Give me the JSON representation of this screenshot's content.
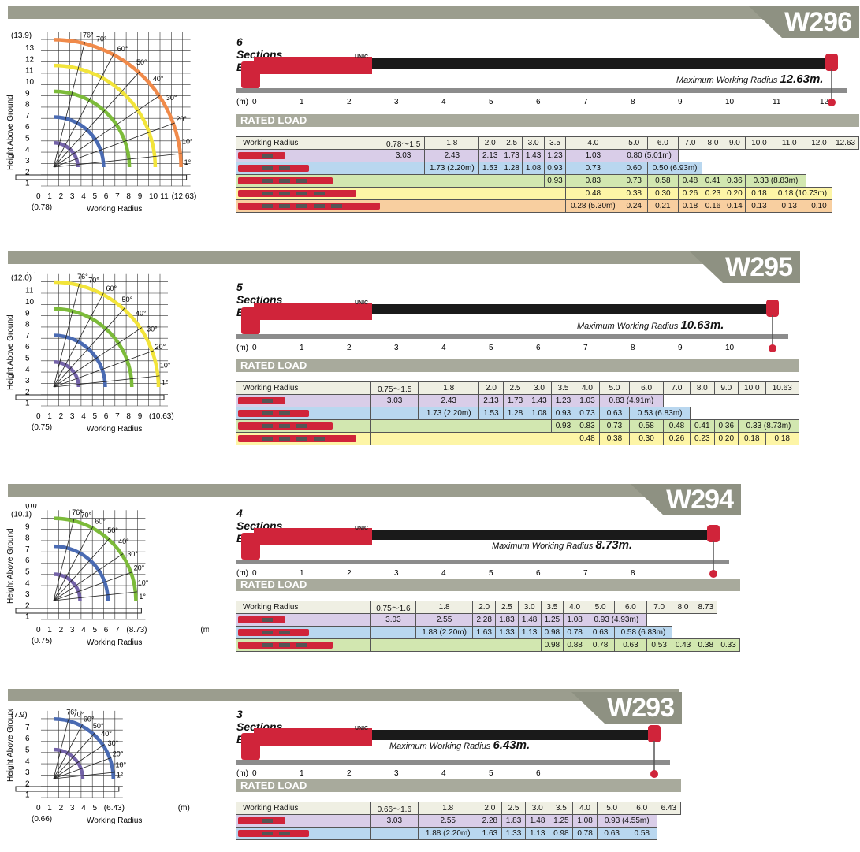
{
  "colors": {
    "purple": "#d9cde8",
    "blue": "#b9d7ef",
    "green": "#d2e7b0",
    "yellow": "#fdf5a6",
    "orange": "#f8cfa0",
    "header": "#efefe3",
    "boom_red": "#d0243a",
    "arc_purple": "#7463a8",
    "arc_blue": "#4a6bb3",
    "arc_green": "#7cbb3a",
    "arc_yellow": "#f2e43a",
    "arc_orange": "#f08a4a"
  },
  "common": {
    "boom_label": "UNIC",
    "ylabel": "Height Above Ground",
    "xlabel": "Working Radius",
    "unit_m": "(m)",
    "rated_load": "RATED LOAD",
    "max_radius_prefix": "Maximum Working Radius",
    "angles": [
      "76°",
      "70°",
      "60°",
      "50°",
      "40°",
      "30°",
      "20°",
      "10°",
      "1°"
    ],
    "row_label": "Working Radius"
  },
  "sections": [
    {
      "id": "W296",
      "model": "W296",
      "boom_title": "6 Sections Boom",
      "max_radius": "12.63m.",
      "chart_ymax_label": "(13.9)",
      "chart_y_ticks": [
        "13",
        "12",
        "11",
        "10",
        "9",
        "8",
        "7",
        "6",
        "5",
        "4",
        "3",
        "2",
        "1"
      ],
      "chart_x_ticks": [
        "0",
        "1",
        "2",
        "3",
        "4",
        "5",
        "6",
        "7",
        "8",
        "9",
        "10",
        "11",
        "(12.63)"
      ],
      "chart_x_sub": "(0.78)",
      "axis_ticks": [
        "0",
        "1",
        "2",
        "3",
        "4",
        "5",
        "6",
        "7",
        "8",
        "9",
        "10",
        "11",
        "12"
      ],
      "header": [
        "0.78～1.5",
        "1.8",
        "2.0",
        "2.5",
        "3.0",
        "3.5",
        "4.0",
        "5.0",
        "6.0",
        "7.0",
        "8.0",
        "9.0",
        "10.0",
        "11.0",
        "12.0",
        "12.63"
      ],
      "rows": [
        {
          "color": "purple",
          "cells": [
            "3.03",
            "2.43",
            "2.13",
            "1.73",
            "1.43",
            "1.23",
            "1.03",
            "0.80 (5.01m)"
          ]
        },
        {
          "color": "blue",
          "cells": [
            "",
            "1.73 (2.20m)",
            "1.53",
            "1.28",
            "1.08",
            "0.93",
            "0.73",
            "0.60",
            "0.50 (6.93m)"
          ]
        },
        {
          "color": "green",
          "cells": [
            "",
            "0.93",
            "0.83",
            "0.73",
            "0.58",
            "0.48",
            "0.41",
            "0.36",
            "0.33 (8.83m)"
          ]
        },
        {
          "color": "yellow",
          "cells": [
            "",
            "0.48",
            "0.38",
            "0.30",
            "0.26",
            "0.23",
            "0.20",
            "0.18",
            "0.18 (10.73m)"
          ]
        },
        {
          "color": "orange",
          "cells": [
            "",
            "0.28 (5.30m)",
            "0.24",
            "0.21",
            "0.18",
            "0.16",
            "0.14",
            "0.13",
            "0.13",
            "0.10"
          ]
        }
      ]
    },
    {
      "id": "W295",
      "model": "W295",
      "boom_title": "5 Sections Boom",
      "max_radius": "10.63m.",
      "chart_ymax_label": "(12.0)",
      "chart_y_ticks": [
        "11",
        "10",
        "9",
        "8",
        "7",
        "6",
        "5",
        "4",
        "3",
        "2",
        "1"
      ],
      "chart_x_ticks": [
        "0",
        "1",
        "2",
        "3",
        "4",
        "5",
        "6",
        "7",
        "8",
        "9",
        "(10.63)"
      ],
      "chart_x_sub": "(0.75)",
      "axis_ticks": [
        "0",
        "1",
        "2",
        "3",
        "4",
        "5",
        "6",
        "7",
        "8",
        "9",
        "10"
      ],
      "header": [
        "0.75～1.5",
        "1.8",
        "2.0",
        "2.5",
        "3.0",
        "3.5",
        "4.0",
        "5.0",
        "6.0",
        "7.0",
        "8.0",
        "9.0",
        "10.0",
        "10.63"
      ],
      "rows": [
        {
          "color": "purple",
          "cells": [
            "3.03",
            "2.43",
            "2.13",
            "1.73",
            "1.43",
            "1.23",
            "1.03",
            "0.83 (4.91m)"
          ]
        },
        {
          "color": "blue",
          "cells": [
            "",
            "1.73 (2.20m)",
            "1.53",
            "1.28",
            "1.08",
            "0.93",
            "0.73",
            "0.63",
            "0.53 (6.83m)"
          ]
        },
        {
          "color": "green",
          "cells": [
            "",
            "0.93",
            "0.83",
            "0.73",
            "0.58",
            "0.48",
            "0.41",
            "0.36",
            "0.33 (8.73m)"
          ]
        },
        {
          "color": "yellow",
          "cells": [
            "",
            "0.48",
            "0.38",
            "0.30",
            "0.26",
            "0.23",
            "0.20",
            "0.18",
            "0.18"
          ]
        }
      ]
    },
    {
      "id": "W294",
      "model": "W294",
      "boom_title": "4 Sections Boom",
      "max_radius": "8.73m.",
      "chart_ymax_label": "(10.1)",
      "chart_y_ticks": [
        "9",
        "8",
        "7",
        "6",
        "5",
        "4",
        "3",
        "2",
        "1"
      ],
      "chart_x_ticks": [
        "0",
        "1",
        "2",
        "3",
        "4",
        "5",
        "6",
        "7",
        "(8.73)"
      ],
      "chart_x_sub": "(0.75)",
      "axis_ticks": [
        "0",
        "1",
        "2",
        "3",
        "4",
        "5",
        "6",
        "7",
        "8"
      ],
      "header": [
        "0.75～1.6",
        "1.8",
        "2.0",
        "2.5",
        "3.0",
        "3.5",
        "4.0",
        "5.0",
        "6.0",
        "7.0",
        "8.0",
        "8.73"
      ],
      "rows": [
        {
          "color": "purple",
          "cells": [
            "3.03",
            "2.55",
            "2.28",
            "1.83",
            "1.48",
            "1.25",
            "1.08",
            "0.93 (4.93m)"
          ]
        },
        {
          "color": "blue",
          "cells": [
            "",
            "1.88 (2.20m)",
            "1.63",
            "1.33",
            "1.13",
            "0.98",
            "0.78",
            "0.63",
            "0.58 (6.83m)"
          ]
        },
        {
          "color": "green",
          "cells": [
            "",
            "0.98",
            "0.88",
            "0.78",
            "0.63",
            "0.53",
            "0.43",
            "0.38",
            "0.33"
          ]
        }
      ]
    },
    {
      "id": "W293",
      "model": "W293",
      "boom_title": "3 Sections Boom",
      "max_radius": "6.43m.",
      "chart_ymax_label": "(7.9)",
      "chart_y_ticks": [
        "7",
        "6",
        "5",
        "4",
        "3",
        "2",
        "1"
      ],
      "chart_x_ticks": [
        "0",
        "1",
        "2",
        "3",
        "4",
        "5",
        "(6.43)"
      ],
      "chart_x_sub": "(0.66)",
      "axis_ticks": [
        "0",
        "1",
        "2",
        "3",
        "4",
        "5",
        "6"
      ],
      "header": [
        "0.66～1.6",
        "1.8",
        "2.0",
        "2.5",
        "3.0",
        "3.5",
        "4.0",
        "5.0",
        "6.0",
        "6.43"
      ],
      "rows": [
        {
          "color": "purple",
          "cells": [
            "3.03",
            "2.55",
            "2.28",
            "1.83",
            "1.48",
            "1.25",
            "1.08",
            "0.93 (4.55m)"
          ]
        },
        {
          "color": "blue",
          "cells": [
            "",
            "1.88 (2.20m)",
            "1.63",
            "1.33",
            "1.13",
            "0.98",
            "0.78",
            "0.63",
            "0.58"
          ]
        }
      ]
    }
  ]
}
